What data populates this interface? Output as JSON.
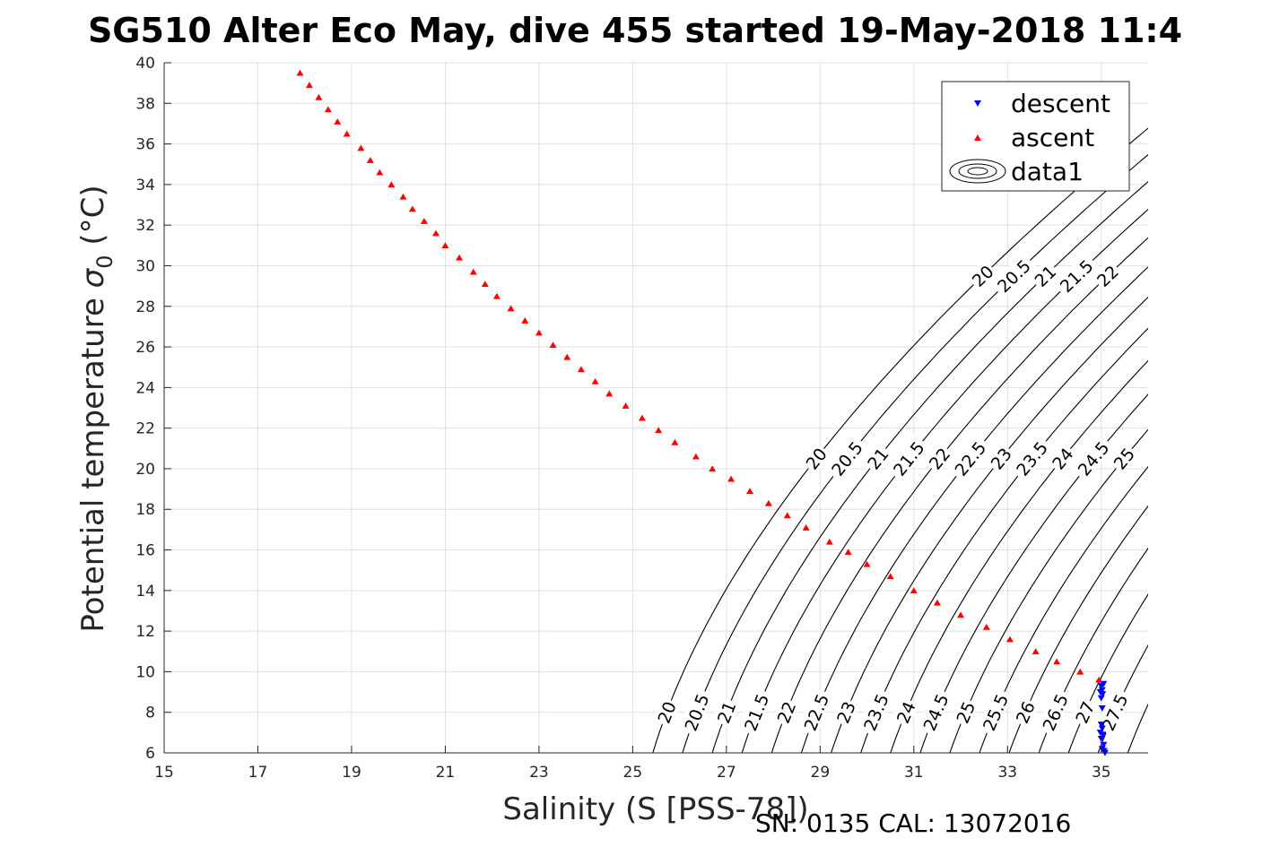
{
  "chart_data": {
    "type": "scatter",
    "title": "SG510 Alter Eco May, dive 455 started 19-May-2018 11:4",
    "xlabel": "Salinity (S [PSS-78])",
    "ylabel": "Potential temperature",
    "ylabel_symbol": "σ",
    "ylabel_subscript": "0",
    "ylabel_unit": "(°C)",
    "xlim": [
      15,
      36
    ],
    "ylim": [
      6,
      40
    ],
    "xticks": [
      "15",
      "17",
      "19",
      "21",
      "23",
      "25",
      "27",
      "29",
      "31",
      "33",
      "35"
    ],
    "yticks": [
      "6",
      "8",
      "10",
      "12",
      "14",
      "16",
      "18",
      "20",
      "22",
      "24",
      "26",
      "28",
      "30",
      "32",
      "34",
      "36",
      "38",
      "40"
    ],
    "grid": true,
    "legend_position": "top-right",
    "colors": {
      "descent": "#0000ff",
      "ascent": "#ff0000",
      "contour": "#000000"
    },
    "series": [
      {
        "name": "descent",
        "marker": "triangle-down",
        "points": [
          [
            35.05,
            9.4
          ],
          [
            35.0,
            9.3
          ],
          [
            35.02,
            9.1
          ],
          [
            34.98,
            9.0
          ],
          [
            35.03,
            8.9
          ],
          [
            35.0,
            8.7
          ],
          [
            35.02,
            8.2
          ],
          [
            35.0,
            7.4
          ],
          [
            35.02,
            7.2
          ],
          [
            34.98,
            7.0
          ],
          [
            35.03,
            6.9
          ],
          [
            35.0,
            6.7
          ],
          [
            35.05,
            6.4
          ],
          [
            35.02,
            6.2
          ],
          [
            35.06,
            6.1
          ],
          [
            35.08,
            6.0
          ]
        ]
      },
      {
        "name": "ascent",
        "marker": "triangle-up",
        "points": [
          [
            17.9,
            39.5
          ],
          [
            18.1,
            38.9
          ],
          [
            18.3,
            38.3
          ],
          [
            18.5,
            37.7
          ],
          [
            18.7,
            37.1
          ],
          [
            18.9,
            36.5
          ],
          [
            19.2,
            35.8
          ],
          [
            19.4,
            35.2
          ],
          [
            19.6,
            34.6
          ],
          [
            19.85,
            34.0
          ],
          [
            20.1,
            33.4
          ],
          [
            20.3,
            32.8
          ],
          [
            20.55,
            32.2
          ],
          [
            20.8,
            31.6
          ],
          [
            21.0,
            31.0
          ],
          [
            21.3,
            30.4
          ],
          [
            21.6,
            29.7
          ],
          [
            21.85,
            29.1
          ],
          [
            22.1,
            28.5
          ],
          [
            22.4,
            27.9
          ],
          [
            22.7,
            27.3
          ],
          [
            23.0,
            26.7
          ],
          [
            23.3,
            26.1
          ],
          [
            23.6,
            25.5
          ],
          [
            23.9,
            24.9
          ],
          [
            24.2,
            24.3
          ],
          [
            24.5,
            23.7
          ],
          [
            24.85,
            23.1
          ],
          [
            25.2,
            22.5
          ],
          [
            25.55,
            21.9
          ],
          [
            25.9,
            21.3
          ],
          [
            26.35,
            20.6
          ],
          [
            26.7,
            20.0
          ],
          [
            27.1,
            19.5
          ],
          [
            27.5,
            18.9
          ],
          [
            27.9,
            18.3
          ],
          [
            28.3,
            17.7
          ],
          [
            28.7,
            17.1
          ],
          [
            29.2,
            16.4
          ],
          [
            29.6,
            15.9
          ],
          [
            30.0,
            15.3
          ],
          [
            30.5,
            14.7
          ],
          [
            31.0,
            14.0
          ],
          [
            31.5,
            13.4
          ],
          [
            32.0,
            12.8
          ],
          [
            32.55,
            12.2
          ],
          [
            33.05,
            11.6
          ],
          [
            33.6,
            11.0
          ],
          [
            34.05,
            10.5
          ],
          [
            34.55,
            10.0
          ],
          [
            34.95,
            9.6
          ]
        ]
      }
    ],
    "contour_levels": [
      20,
      20.5,
      21,
      21.5,
      22,
      22.5,
      23,
      23.5,
      24,
      24.5,
      25,
      25.5,
      26,
      26.5,
      27,
      27.5,
      28,
      28.5
    ],
    "contour_labels": {
      "bottom": [
        "20",
        "20.5",
        "21",
        "21.5",
        "22",
        "22.5",
        "23",
        "23.5",
        "24",
        "24.5",
        "25",
        "25.5",
        "26",
        "26.5",
        "27",
        "27.5"
      ],
      "middle": [
        "20",
        "20.5",
        "21",
        "21.5",
        "22",
        "22.5",
        "23",
        "23.5",
        "24",
        "24.5",
        "25"
      ],
      "top": [
        "20",
        "20.5",
        "21",
        "21.5",
        "22"
      ]
    },
    "legend": [
      "descent",
      "ascent",
      "data1"
    ],
    "footer": "SN: 0135  CAL: 13072016"
  }
}
